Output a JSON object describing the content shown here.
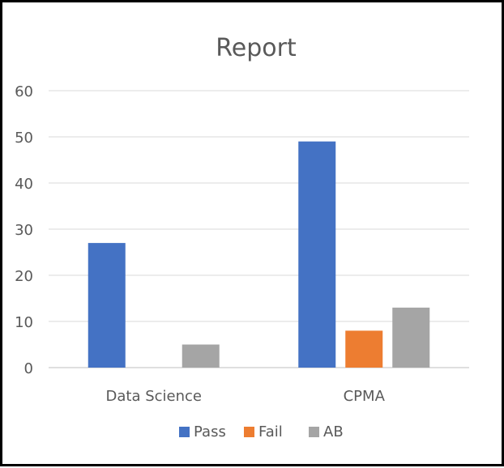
{
  "chart_data": {
    "type": "bar",
    "title": "Report",
    "xlabel": "",
    "ylabel": "",
    "categories": [
      "Data Science",
      "CPMA"
    ],
    "series": [
      {
        "name": "Pass",
        "values": [
          27,
          49
        ],
        "color": "#4472C4"
      },
      {
        "name": "Fail",
        "values": [
          0,
          8
        ],
        "color": "#ED7D31"
      },
      {
        "name": "AB",
        "values": [
          5,
          13
        ],
        "color": "#A5A5A5"
      }
    ],
    "ylim": [
      0,
      60
    ],
    "yticks": [
      "0",
      "10",
      "20",
      "30",
      "40",
      "50",
      "60"
    ],
    "grid": true,
    "legend": "bottom"
  }
}
